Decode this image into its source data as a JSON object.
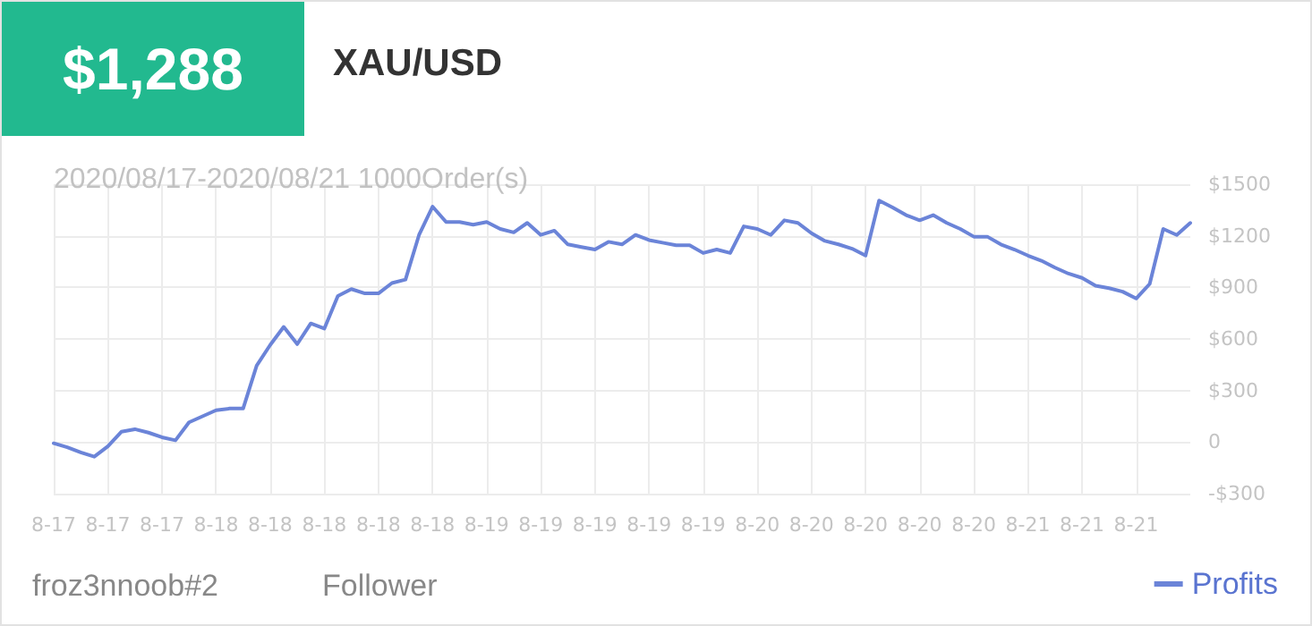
{
  "chart_data": {
    "type": "line",
    "title": "XAU/USD",
    "subtitle": "2020/08/17-2020/08/21 1000Order(s)",
    "annotations": [
      "$1,288",
      "froz3nnoob#2",
      "Follower"
    ],
    "categories": [
      "8-17",
      null,
      null,
      null,
      "8-17",
      null,
      null,
      null,
      "8-17",
      null,
      null,
      null,
      "8-18",
      null,
      null,
      null,
      "8-18",
      null,
      null,
      null,
      "8-18",
      null,
      null,
      null,
      "8-18",
      null,
      null,
      null,
      "8-18",
      null,
      null,
      null,
      "8-19",
      null,
      null,
      null,
      "8-19",
      null,
      null,
      null,
      "8-19",
      null,
      null,
      null,
      "8-19",
      null,
      null,
      null,
      "8-19",
      null,
      null,
      null,
      "8-20",
      null,
      null,
      null,
      "8-20",
      null,
      null,
      null,
      "8-20",
      null,
      null,
      null,
      "8-20",
      null,
      null,
      null,
      "8-20",
      null,
      null,
      null,
      "8-21",
      null,
      null,
      null,
      "8-21",
      null,
      null,
      null,
      "8-21",
      null,
      null,
      null,
      null
    ],
    "series": [
      {
        "name": "Profits",
        "color": "#6b84d8",
        "values": [
          -7,
          -30,
          -60,
          -85,
          -25,
          60,
          75,
          55,
          28,
          10,
          115,
          150,
          185,
          195,
          195,
          445,
          565,
          670,
          570,
          690,
          660,
          850,
          890,
          865,
          865,
          925,
          945,
          1205,
          1370,
          1280,
          1280,
          1265,
          1280,
          1240,
          1220,
          1275,
          1205,
          1230,
          1150,
          1135,
          1120,
          1165,
          1150,
          1205,
          1175,
          1160,
          1145,
          1145,
          1100,
          1120,
          1100,
          1255,
          1240,
          1205,
          1290,
          1275,
          1215,
          1170,
          1150,
          1125,
          1085,
          1405,
          1365,
          1320,
          1290,
          1320,
          1275,
          1240,
          1195,
          1195,
          1150,
          1120,
          1085,
          1055,
          1015,
          980,
          955,
          910,
          895,
          875,
          835,
          920,
          1240,
          1205,
          1275
        ]
      }
    ],
    "ylim": [
      -300,
      1500
    ],
    "yticks": [
      {
        "value": -300,
        "label": "-$300"
      },
      {
        "value": 0,
        "label": "0"
      },
      {
        "value": 300,
        "label": "$300"
      },
      {
        "value": 600,
        "label": "$600"
      },
      {
        "value": 900,
        "label": "$900"
      },
      {
        "value": 1200,
        "label": "$1200"
      },
      {
        "value": 1500,
        "label": "$1500"
      }
    ],
    "grid": true,
    "legend": "bottom right",
    "marker": "none",
    "line_style": "solid"
  }
}
